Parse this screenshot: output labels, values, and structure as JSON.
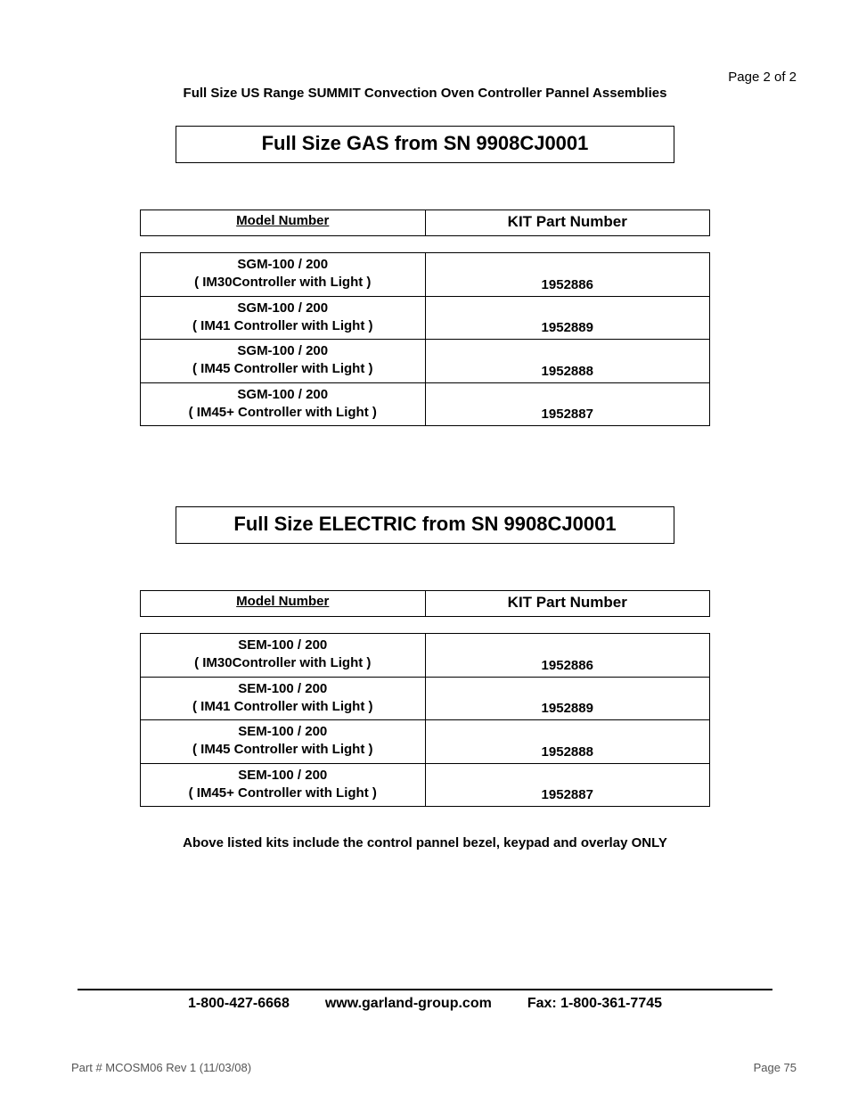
{
  "page_number": "Page 2 of 2",
  "doc_title": "Full Size US Range SUMMIT Convection Oven Controller Pannel Assemblies",
  "sections": [
    {
      "title": "Full Size GAS from SN 9908CJ0001",
      "header_model": "Model Number",
      "header_kit": "KIT Part Number",
      "rows": [
        {
          "model_line1": "SGM-100 / 200",
          "model_line2": "( IM30Controller with Light )",
          "kit": "1952886"
        },
        {
          "model_line1": "SGM-100 / 200",
          "model_line2": "( IM41 Controller with Light )",
          "kit": "1952889"
        },
        {
          "model_line1": "SGM-100 / 200",
          "model_line2": "( IM45 Controller with Light )",
          "kit": "1952888"
        },
        {
          "model_line1": "SGM-100 / 200",
          "model_line2": "( IM45+ Controller with Light )",
          "kit": "1952887"
        }
      ]
    },
    {
      "title": "Full Size ELECTRIC from SN 9908CJ0001",
      "header_model": "Model Number",
      "header_kit": "KIT Part Number",
      "rows": [
        {
          "model_line1": "SEM-100 / 200",
          "model_line2": "( IM30Controller with Light )",
          "kit": "1952886"
        },
        {
          "model_line1": "SEM-100 / 200",
          "model_line2": "( IM41 Controller with Light )",
          "kit": "1952889"
        },
        {
          "model_line1": "SEM-100 / 200",
          "model_line2": "( IM45 Controller with Light )",
          "kit": "1952888"
        },
        {
          "model_line1": "SEM-100 / 200",
          "model_line2": "( IM45+ Controller with Light )",
          "kit": "1952887"
        }
      ]
    }
  ],
  "note": "Above listed kits include the control pannel bezel, keypad and overlay ONLY",
  "footer": {
    "phone": "1-800-427-6668",
    "website": "www.garland-group.com",
    "fax": "Fax: 1-800-361-7745"
  },
  "part_rev": "Part # MCOSM06 Rev 1 (11/03/08)",
  "page_label": "Page 75",
  "colors": {
    "background": "#ffffff",
    "text": "#000000",
    "footer_text": "#555555",
    "border": "#000000"
  },
  "fonts": {
    "body": "Arial",
    "title_size": 22,
    "header_size": 15,
    "cell_size": 15
  }
}
